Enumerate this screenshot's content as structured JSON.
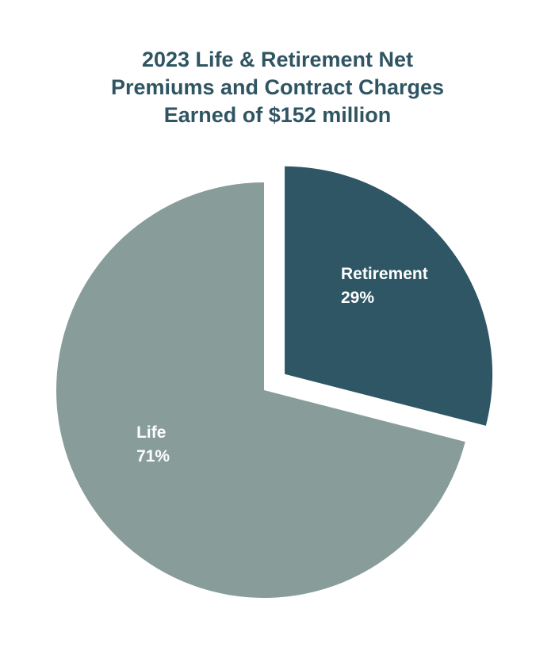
{
  "chart_data": {
    "type": "pie",
    "title_lines": [
      "2023 Life & Retirement Net",
      "Premiums and Contract Charges",
      "Earned of $152 million"
    ],
    "slices": [
      {
        "label": "Retirement",
        "value": 29,
        "value_label": "29%",
        "color": "#2e5665",
        "exploded": true
      },
      {
        "label": "Life",
        "value": 71,
        "value_label": "71%",
        "color": "#889d99",
        "exploded": false
      }
    ],
    "legend": "none"
  }
}
